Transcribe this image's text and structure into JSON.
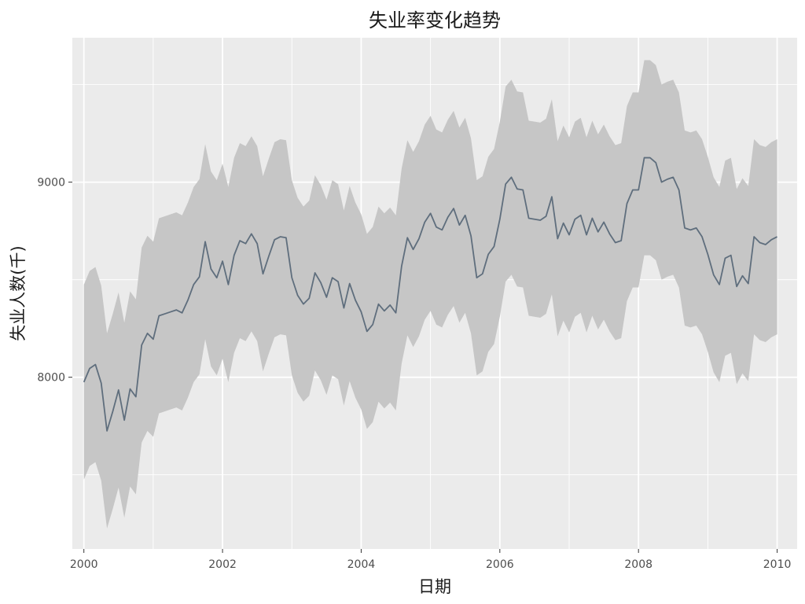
{
  "chart_data": {
    "type": "area",
    "title": "失业率变化趋势",
    "xlabel": "日期",
    "ylabel": "失业人数(千)",
    "x_ticks": [
      "2000",
      "2002",
      "2004",
      "2006",
      "2008",
      "2010"
    ],
    "y_ticks": [
      "8000",
      "9000"
    ],
    "xlim": [
      "1999-11-01",
      "2010-04-15"
    ],
    "ylim": [
      7120,
      9740
    ],
    "grid": true,
    "legend": "none",
    "band_halfwidth": 500,
    "colors": {
      "line": "#5f6e7d",
      "band": "#c6c6c6",
      "panel": "#ebebeb",
      "grid": "#ffffff"
    },
    "series": [
      {
        "x": [
          "2000-01",
          "2000-02",
          "2000-03",
          "2000-04",
          "2000-05",
          "2000-06",
          "2000-07",
          "2000-08",
          "2000-09",
          "2000-10",
          "2000-11",
          "2000-12",
          "2001-01",
          "2001-02",
          "2001-03",
          "2001-04",
          "2001-05",
          "2001-06",
          "2001-07",
          "2001-08",
          "2001-09",
          "2001-10",
          "2001-11",
          "2001-12",
          "2002-01",
          "2002-02",
          "2002-03",
          "2002-04",
          "2002-05",
          "2002-06",
          "2002-07",
          "2002-08",
          "2002-09",
          "2002-10",
          "2002-11",
          "2002-12",
          "2003-01",
          "2003-02",
          "2003-03",
          "2003-04",
          "2003-05",
          "2003-06",
          "2003-07",
          "2003-08",
          "2003-09",
          "2003-10",
          "2003-11",
          "2003-12",
          "2004-01",
          "2004-02",
          "2004-03",
          "2004-04",
          "2004-05",
          "2004-06",
          "2004-07",
          "2004-08",
          "2004-09",
          "2004-10",
          "2004-11",
          "2004-12",
          "2005-01",
          "2005-02",
          "2005-03",
          "2005-04",
          "2005-05",
          "2005-06",
          "2005-07",
          "2005-08",
          "2005-09",
          "2005-10",
          "2005-11",
          "2005-12",
          "2006-01",
          "2006-02",
          "2006-03",
          "2006-04",
          "2006-05",
          "2006-06",
          "2006-07",
          "2006-08",
          "2006-09",
          "2006-10",
          "2006-11",
          "2006-12",
          "2007-01",
          "2007-02",
          "2007-03",
          "2007-04",
          "2007-05",
          "2007-06",
          "2007-07",
          "2007-08",
          "2007-09",
          "2007-10",
          "2007-11",
          "2007-12",
          "2008-01",
          "2008-02",
          "2008-03",
          "2008-04",
          "2008-05",
          "2008-06",
          "2008-07",
          "2008-08",
          "2008-09",
          "2008-10",
          "2008-11",
          "2008-12",
          "2009-01",
          "2009-02",
          "2009-03",
          "2009-04",
          "2009-05",
          "2009-06",
          "2009-07",
          "2009-08",
          "2009-09",
          "2009-10",
          "2009-11",
          "2009-12",
          "2010-01"
        ],
        "values": [
          7975,
          8045,
          8065,
          7970,
          7725,
          7825,
          7935,
          7780,
          7940,
          7900,
          8165,
          8225,
          8195,
          8315,
          8325,
          8335,
          8345,
          8330,
          8395,
          8475,
          8515,
          8695,
          8555,
          8510,
          8595,
          8475,
          8625,
          8700,
          8685,
          8735,
          8685,
          8530,
          8620,
          8705,
          8720,
          8715,
          8510,
          8420,
          8375,
          8405,
          8535,
          8485,
          8410,
          8510,
          8490,
          8355,
          8480,
          8395,
          8335,
          8235,
          8270,
          8375,
          8340,
          8370,
          8330,
          8570,
          8715,
          8655,
          8710,
          8795,
          8840,
          8770,
          8755,
          8820,
          8865,
          8780,
          8830,
          8725,
          8510,
          8530,
          8630,
          8670,
          8810,
          8990,
          9025,
          8965,
          8960,
          8815,
          8810,
          8805,
          8825,
          8925,
          8710,
          8790,
          8730,
          8810,
          8830,
          8730,
          8815,
          8745,
          8795,
          8735,
          8690,
          8700,
          8890,
          8960,
          8960,
          9125,
          9125,
          9100,
          9000,
          9015,
          9025,
          8960,
          8765,
          8755,
          8765,
          8720,
          8630,
          8525,
          8475,
          8610,
          8625,
          8465,
          8520,
          8480,
          8720,
          8690,
          8680,
          8705,
          8720
        ]
      }
    ]
  }
}
